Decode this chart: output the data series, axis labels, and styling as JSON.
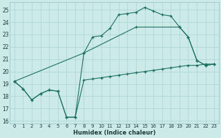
{
  "xlabel": "Humidex (Indice chaleur)",
  "bg_color": "#cceae8",
  "grid_color": "#aad4d0",
  "line_color": "#1a6e60",
  "xlim": [
    -0.5,
    23.5
  ],
  "ylim": [
    15.8,
    25.6
  ],
  "xticks": [
    0,
    1,
    2,
    3,
    4,
    5,
    6,
    7,
    8,
    9,
    10,
    11,
    12,
    13,
    14,
    15,
    16,
    17,
    18,
    19,
    20,
    21,
    22,
    23
  ],
  "yticks": [
    16,
    17,
    18,
    19,
    20,
    21,
    22,
    23,
    24,
    25
  ],
  "series1_x": [
    0,
    1,
    2,
    3,
    4,
    5,
    6,
    7,
    8,
    9,
    10,
    11,
    12,
    13,
    14,
    15,
    16,
    17,
    18,
    19,
    20,
    21,
    22,
    23
  ],
  "series1_y": [
    19.2,
    18.6,
    17.7,
    18.2,
    18.5,
    18.4,
    16.3,
    16.3,
    19.3,
    19.4,
    19.5,
    19.6,
    19.7,
    19.8,
    19.9,
    20.0,
    20.1,
    20.2,
    20.3,
    20.4,
    20.5,
    20.5,
    20.6,
    20.6
  ],
  "series2_x": [
    0,
    1,
    2,
    3,
    4,
    5,
    6,
    7,
    8,
    9,
    10,
    11,
    12,
    13,
    14,
    15,
    16,
    17,
    18,
    19,
    20,
    21,
    22,
    23
  ],
  "series2_y": [
    19.2,
    18.6,
    17.7,
    18.2,
    18.5,
    18.4,
    16.3,
    16.3,
    21.5,
    22.8,
    22.9,
    23.5,
    24.6,
    24.7,
    24.8,
    25.2,
    24.9,
    24.6,
    24.5,
    23.6,
    22.8,
    20.9,
    20.5,
    20.6
  ],
  "series3_x": [
    0,
    8,
    14,
    19,
    20,
    21,
    22,
    23
  ],
  "series3_y": [
    19.2,
    21.5,
    23.6,
    23.6,
    22.8,
    20.9,
    20.5,
    20.6
  ]
}
